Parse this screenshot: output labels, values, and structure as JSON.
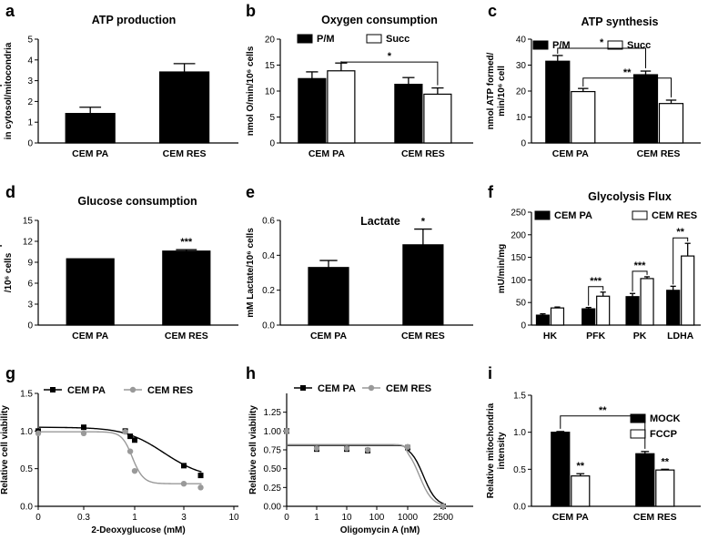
{
  "chart_data": [
    {
      "letter": "a",
      "type": "bar",
      "title": "ATP production",
      "ylabel": [
        "Ratio of ATP production",
        "in cytosol/mitocondria"
      ],
      "ylim": [
        0,
        5
      ],
      "yticks": [
        "0",
        "1",
        "2",
        "3",
        "4",
        "5"
      ],
      "categories": [
        "CEM PA",
        "CEM RES"
      ],
      "series": [
        {
          "values": [
            1.42,
            3.42
          ],
          "errors": [
            0.3,
            0.4
          ],
          "fill": "#000000"
        }
      ]
    },
    {
      "letter": "b",
      "type": "bar",
      "title": "Oxygen consumption",
      "ylabel": [
        "nmol O/min/10⁶ cells"
      ],
      "ylim": [
        0,
        20
      ],
      "yticks": [
        "0",
        "5",
        "10",
        "15",
        "20"
      ],
      "categories": [
        "CEM PA",
        "CEM RES"
      ],
      "series": [
        {
          "name": "P/M",
          "values": [
            12.4,
            11.3
          ],
          "errors": [
            1.3,
            1.3
          ],
          "fill": "#000000"
        },
        {
          "name": "Succ",
          "values": [
            13.9,
            9.4
          ],
          "errors": [
            1.5,
            1.2
          ],
          "fill": "#ffffff"
        }
      ],
      "annotations": [
        "*"
      ]
    },
    {
      "letter": "c",
      "type": "bar",
      "title": "ATP synthesis",
      "ylabel": [
        "nmol ATP formed/",
        "min/10⁶ cell"
      ],
      "ylim": [
        0,
        40
      ],
      "yticks": [
        "0",
        "10",
        "20",
        "30",
        "40"
      ],
      "categories": [
        "CEM PA",
        "CEM RES"
      ],
      "series": [
        {
          "name": "P/M",
          "values": [
            31.5,
            26.3
          ],
          "errors": [
            2.2,
            1.4
          ],
          "fill": "#000000"
        },
        {
          "name": "Succ",
          "values": [
            19.8,
            15.2
          ],
          "errors": [
            1.2,
            1.3
          ],
          "fill": "#ffffff"
        }
      ],
      "annotations": [
        "*",
        "**"
      ]
    },
    {
      "letter": "d",
      "type": "bar",
      "title": "Glucose consumption",
      "ylabel": [
        "Glucose consumption",
        "/10⁶ cells"
      ],
      "ylim": [
        0,
        15
      ],
      "yticks": [
        "0",
        "3",
        "6",
        "9",
        "12",
        "15"
      ],
      "categories": [
        "CEM PA",
        "CEM RES"
      ],
      "series": [
        {
          "values": [
            9.5,
            10.6
          ],
          "errors": [
            0.0,
            0.2
          ],
          "fill": "#000000"
        }
      ],
      "annotations": [
        "***"
      ]
    },
    {
      "letter": "e",
      "type": "bar",
      "title": "Lactate",
      "ylabel": [
        "mM Lactate/10⁶ cells"
      ],
      "ylim": [
        0,
        0.6
      ],
      "yticks": [
        "0.0",
        "0.2",
        "0.4",
        "0.6"
      ],
      "categories": [
        "CEM PA",
        "CEM RES"
      ],
      "series": [
        {
          "values": [
            0.33,
            0.46
          ],
          "errors": [
            0.04,
            0.09
          ],
          "fill": "#000000"
        }
      ],
      "annotations": [
        "*"
      ]
    },
    {
      "letter": "f",
      "type": "bar",
      "title": "Glycolysis Flux",
      "ylabel": [
        "mU/min/mg"
      ],
      "ylim": [
        0,
        250
      ],
      "yticks": [
        "0",
        "50",
        "100",
        "150",
        "200",
        "250"
      ],
      "categories": [
        "HK",
        "PFK",
        "PK",
        "LDHA"
      ],
      "series": [
        {
          "name": "CEM PA",
          "values": [
            22,
            36,
            63,
            77
          ],
          "errors": [
            3,
            3,
            7,
            9
          ],
          "fill": "#000000"
        },
        {
          "name": "CEM RES",
          "values": [
            38,
            64,
            103,
            153
          ],
          "errors": [
            2,
            9,
            4,
            28
          ],
          "fill": "#ffffff"
        }
      ],
      "annotations": [
        "***",
        "***",
        "**"
      ]
    },
    {
      "letter": "g",
      "type": "line",
      "xscale": "log",
      "xlabel": "2-Deoxyglucose (mM)",
      "ylabel": [
        "Relative cell viability"
      ],
      "xlim": [
        0,
        10
      ],
      "ylim": [
        0,
        1.5
      ],
      "xticks": [
        {
          "v": 0,
          "t": "0"
        },
        {
          "v": 0.3,
          "t": "0.3"
        },
        {
          "v": 1,
          "t": "1"
        },
        {
          "v": 3,
          "t": "3"
        },
        {
          "v": 10,
          "t": "10"
        }
      ],
      "yticks": [
        "0.0",
        "0.5",
        "1.0",
        "1.5"
      ],
      "series": [
        {
          "name": "CEM PA",
          "color": "#000000",
          "marker": "square",
          "x": [
            0,
            0.3,
            0.8,
            0.9,
            1,
            3,
            4.5
          ],
          "y": [
            1.0,
            1.05,
            1.0,
            0.93,
            0.88,
            0.54,
            0.41
          ],
          "curve": {
            "top": 1.05,
            "bottom": 0.38,
            "ic50": 1.9,
            "hill": 2.3
          }
        },
        {
          "name": "CEM RES",
          "color": "#999999",
          "marker": "circle",
          "x": [
            0,
            0.3,
            0.8,
            0.9,
            1,
            3,
            4.5
          ],
          "y": [
            0.97,
            0.97,
            0.99,
            0.73,
            0.47,
            0.3,
            0.25
          ],
          "curve": {
            "top": 0.99,
            "bottom": 0.3,
            "ic50": 0.95,
            "hill": 8
          }
        }
      ]
    },
    {
      "letter": "h",
      "type": "line",
      "xscale": "log",
      "xlabel": "Oligomycin A (nM)",
      "ylabel": [
        "Relative cell viability"
      ],
      "xlim": [
        0,
        2500
      ],
      "ylim": [
        0,
        1.5
      ],
      "xticks": [
        {
          "v": 0,
          "t": "0"
        },
        {
          "v": 1,
          "t": "1"
        },
        {
          "v": 10,
          "t": "10"
        },
        {
          "v": 100,
          "t": "100"
        },
        {
          "v": 1000,
          "t": "1000"
        },
        {
          "v": 2500,
          "t": "2500"
        }
      ],
      "yticks": [
        "0.00",
        "0.25",
        "0.50",
        "0.75",
        "1.00",
        "1.25"
      ],
      "series": [
        {
          "name": "CEM PA",
          "color": "#000000",
          "marker": "square",
          "x": [
            0,
            1,
            10,
            50,
            1000,
            2500
          ],
          "y": [
            1.0,
            0.76,
            0.76,
            0.74,
            0.78,
            0.0
          ],
          "curve": {
            "top": 0.81,
            "bottom": 0.0,
            "ic50": 1500,
            "hill": 6
          }
        },
        {
          "name": "CEM RES",
          "color": "#999999",
          "marker": "circle",
          "x": [
            0,
            1,
            10,
            50,
            1000,
            2500
          ],
          "y": [
            1.0,
            0.77,
            0.77,
            0.75,
            0.79,
            0.0
          ],
          "curve": {
            "top": 0.82,
            "bottom": 0.0,
            "ic50": 1350,
            "hill": 6
          }
        }
      ]
    },
    {
      "letter": "i",
      "type": "bar",
      "ylabel": [
        "Relative mitochondria",
        "intensity"
      ],
      "ylim": [
        0,
        1.5
      ],
      "yticks": [
        "0.0",
        "0.5",
        "1.0",
        "1.5"
      ],
      "categories": [
        "CEM PA",
        "CEM RES"
      ],
      "series": [
        {
          "name": "MOCK",
          "values": [
            1.0,
            0.71
          ],
          "errors": [
            0.01,
            0.03
          ],
          "fill": "#000000"
        },
        {
          "name": "FCCP",
          "values": [
            0.41,
            0.49
          ],
          "errors": [
            0.03,
            0.01
          ],
          "fill": "#ffffff"
        }
      ],
      "annotations": [
        "**",
        "**",
        "**"
      ]
    }
  ]
}
